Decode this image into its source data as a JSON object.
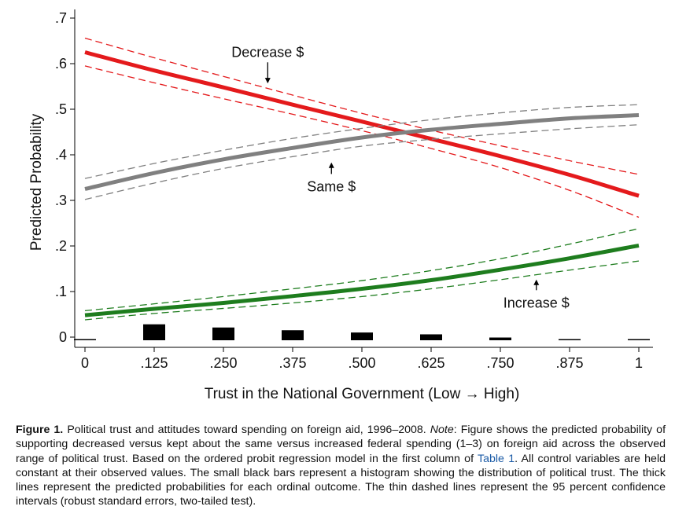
{
  "chart_data": {
    "type": "line",
    "xlabel": "Trust in the National Government (Low → High)",
    "ylabel": "Predicted Probability",
    "xlim": [
      0,
      1
    ],
    "ylim": [
      -0.02,
      0.72
    ],
    "x_ticks": [
      0,
      0.125,
      0.25,
      0.375,
      0.5,
      0.625,
      0.75,
      0.875,
      1
    ],
    "x_tick_labels": [
      "0",
      ".125",
      ".250",
      ".375",
      ".500",
      ".625",
      ".750",
      ".875",
      "1"
    ],
    "y_ticks": [
      0,
      0.1,
      0.2,
      0.3,
      0.4,
      0.5,
      0.6,
      0.7
    ],
    "y_tick_labels": [
      "0",
      ".1",
      ".2",
      ".3",
      ".4",
      ".5",
      ".6",
      ".7"
    ],
    "grid": false,
    "x": [
      0,
      0.125,
      0.25,
      0.375,
      0.5,
      0.625,
      0.75,
      0.875,
      1
    ],
    "series": [
      {
        "name": "Decrease $",
        "color": "#e41a1c",
        "values": [
          0.625,
          0.585,
          0.548,
          0.51,
          0.473,
          0.435,
          0.397,
          0.356,
          0.31
        ],
        "ci_upper": [
          0.656,
          0.613,
          0.572,
          0.531,
          0.491,
          0.454,
          0.42,
          0.387,
          0.357
        ],
        "ci_lower": [
          0.595,
          0.558,
          0.523,
          0.489,
          0.453,
          0.414,
          0.372,
          0.322,
          0.263
        ],
        "annotation": {
          "text": "Decrease $",
          "x": 0.33,
          "y": 0.615,
          "arrow_to": [
            0.33,
            0.555
          ]
        }
      },
      {
        "name": "Same $",
        "color": "#808080",
        "values": [
          0.325,
          0.36,
          0.39,
          0.415,
          0.438,
          0.455,
          0.468,
          0.48,
          0.487
        ],
        "ci_upper": [
          0.348,
          0.381,
          0.41,
          0.436,
          0.458,
          0.477,
          0.492,
          0.504,
          0.51
        ],
        "ci_lower": [
          0.302,
          0.338,
          0.37,
          0.396,
          0.419,
          0.434,
          0.446,
          0.457,
          0.466
        ],
        "annotation": {
          "text": "Same $",
          "x": 0.445,
          "y": 0.32,
          "arrow_to": [
            0.445,
            0.385
          ]
        }
      },
      {
        "name": "Increase $",
        "color": "#1e7d1e",
        "values": [
          0.048,
          0.062,
          0.075,
          0.09,
          0.106,
          0.125,
          0.148,
          0.173,
          0.201
        ],
        "ci_upper": [
          0.058,
          0.073,
          0.089,
          0.106,
          0.124,
          0.146,
          0.172,
          0.204,
          0.238
        ],
        "ci_lower": [
          0.038,
          0.052,
          0.063,
          0.075,
          0.089,
          0.106,
          0.126,
          0.147,
          0.167
        ],
        "annotation": {
          "text": "Increase $",
          "x": 0.815,
          "y": 0.065,
          "arrow_to": [
            0.815,
            0.128
          ]
        }
      }
    ],
    "histogram": {
      "x": [
        0,
        0.125,
        0.25,
        0.375,
        0.5,
        0.625,
        0.75,
        0.875,
        1
      ],
      "values": [
        0.001,
        0.035,
        0.028,
        0.022,
        0.017,
        0.013,
        0.006,
        0.002,
        0.0015
      ],
      "color": "#000000"
    }
  },
  "caption": {
    "figure_label": "Figure 1.",
    "title": "Political trust and attitudes toward spending on foreign aid, 1996–2008.",
    "note_label": "Note",
    "text_before_link": ": Figure shows the predicted probability of supporting decreased versus kept about the same versus increased federal spending (1–3) on foreign aid across the observed range of political trust. Based on the ordered probit regression model in the first column of ",
    "link_text": "Table 1",
    "text_after_link": ". All control variables are held constant at their observed values. The small black bars represent a histogram showing the distribution of political trust. The thick lines represent the predicted probabilities for each ordinal outcome. The thin dashed lines represent the 95 percent confidence intervals (robust standard errors, two-tailed test)."
  }
}
